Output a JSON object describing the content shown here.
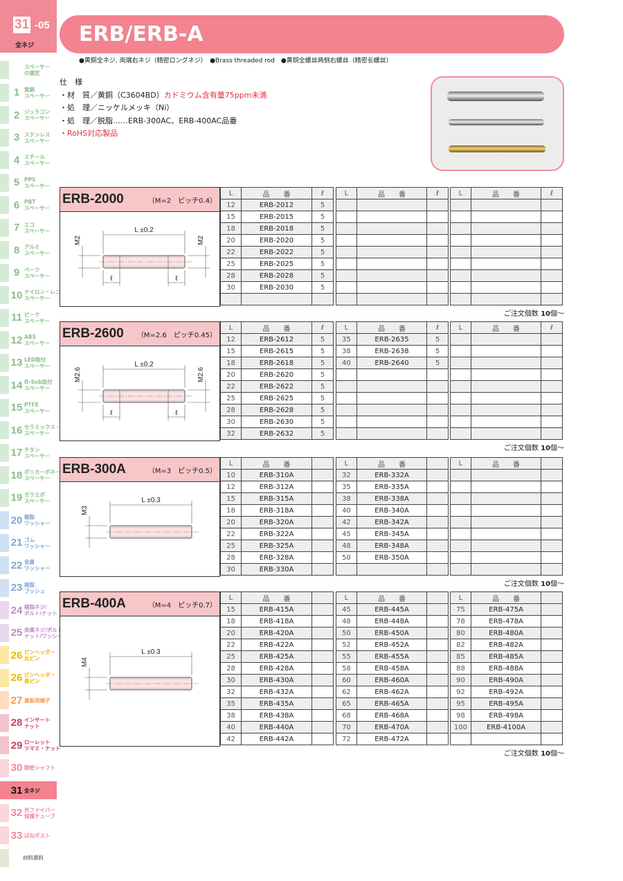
{
  "header": {
    "page_num": "31",
    "page_sub": "-05",
    "category": "全ネジ",
    "title": "ERB/ERB-A",
    "subtitle": "●黄銅全ネジ, 両端右ネジ（精密ロングネジ）　●Brass threaded rod　●黄铜全螺丝两侧右螺丝（精密长螺丝）"
  },
  "spec": {
    "heading": "仕　様",
    "lines": [
      {
        "a": "・材　質／黄銅（C3604BD）",
        "b": "カドミウム含有量75ppm未満"
      },
      {
        "a": "・処　理／ニッケルメッキ（Ni）",
        "b": ""
      },
      {
        "a": "・処　理／脱脂……ERB-300AC、ERB-400AC品番",
        "b": ""
      }
    ],
    "rohs": "・RoHS対応製品"
  },
  "colors": {
    "accent": "#f2838f",
    "header_band": "#f7c6c9",
    "note_red": "#e03040"
  },
  "sidebar": [
    {
      "n": "",
      "l": "スペーサー|の選定",
      "g": "green"
    },
    {
      "n": "1",
      "l": "黄銅|スペーサー",
      "g": "green"
    },
    {
      "n": "2",
      "l": "ジュラコン|スペーサー",
      "g": "green"
    },
    {
      "n": "3",
      "l": "ステンレス|スペーサー",
      "g": "green"
    },
    {
      "n": "4",
      "l": "スチール|スペーサー",
      "g": "green"
    },
    {
      "n": "5",
      "l": "PPS|スペーサー",
      "g": "green"
    },
    {
      "n": "6",
      "l": "PBT|スペーサー",
      "g": "green"
    },
    {
      "n": "7",
      "l": "エコ|スペーサー",
      "g": "green"
    },
    {
      "n": "8",
      "l": "アルミ|スペーサー",
      "g": "green"
    },
    {
      "n": "9",
      "l": "ベーク|スペーサー",
      "g": "green"
    },
    {
      "n": "10",
      "l": "ナイロン・レニー|スペーサー",
      "g": "green"
    },
    {
      "n": "11",
      "l": "ピーク|スペーサー",
      "g": "green"
    },
    {
      "n": "12",
      "l": "ABS|スペーサー",
      "g": "green"
    },
    {
      "n": "13",
      "l": "LED取付|スペーサー",
      "g": "green"
    },
    {
      "n": "14",
      "l": "D-Sub取付|スペーサー",
      "g": "green"
    },
    {
      "n": "15",
      "l": "PTFE|スペーサー",
      "g": "green"
    },
    {
      "n": "16",
      "l": "セラミックス・ガラス|スペーサー",
      "g": "green"
    },
    {
      "n": "17",
      "l": "チタン|スペーサー",
      "g": "green"
    },
    {
      "n": "18",
      "l": "ポリカーボネート|スペーサー",
      "g": "green"
    },
    {
      "n": "19",
      "l": "ガラエポ|スペーサー",
      "g": "green"
    },
    {
      "n": "20",
      "l": "樹脂|ワッシャー",
      "g": "blue"
    },
    {
      "n": "21",
      "l": "ゴム|ワッシャー",
      "g": "blue"
    },
    {
      "n": "22",
      "l": "金属|ワッシャー",
      "g": "blue"
    },
    {
      "n": "23",
      "l": "樹脂|ブッシュ",
      "g": "blue"
    },
    {
      "n": "24",
      "l": "樹脂ネジ/|ボルト/ナット",
      "g": "purple"
    },
    {
      "n": "25",
      "l": "金属ネジ/ボルト/|ナット/ワッシャー",
      "g": "purple"
    },
    {
      "n": "26",
      "l": "ピンヘッダー|丸ピン",
      "g": "yellow"
    },
    {
      "n": "26",
      "l": "ピンヘッダー|角ピン",
      "g": "yellow"
    },
    {
      "n": "27",
      "l": "基板用端子",
      "g": "orange"
    },
    {
      "n": "28",
      "l": "インサート|ナット",
      "g": "pink"
    },
    {
      "n": "29",
      "l": "ローレット|ツマミ・ナット",
      "g": "pink"
    },
    {
      "n": "30",
      "l": "精密シャフト",
      "g": "lpink"
    },
    {
      "n": "31",
      "l": "全ネジ",
      "g": "active"
    },
    {
      "n": "32",
      "l": "光ファイバー|保護チューブ",
      "g": "lpink"
    },
    {
      "n": "33",
      "l": "ばねポスト",
      "g": "lpink"
    },
    {
      "n": "",
      "l": "材料資料",
      "g": "gray"
    }
  ],
  "table_headers": {
    "L": "L",
    "part": "品　　番",
    "ell": "ℓ"
  },
  "moq": {
    "pre": "ご注文個数 ",
    "num": "10",
    "post": "個〜"
  },
  "sections": [
    {
      "name": "ERB-2000",
      "pitch": "（M=2　ピッチ0.4）",
      "draw": "stud",
      "m": "M2",
      "tol": "L ±0.2",
      "ell": "ℓ",
      "has_ell": true,
      "rows": 9,
      "cols": [
        [
          [
            "12",
            "ERB-2012",
            "5"
          ],
          [
            "15",
            "ERB-2015",
            "5"
          ],
          [
            "18",
            "ERB-2018",
            "5"
          ],
          [
            "20",
            "ERB-2020",
            "5"
          ],
          [
            "22",
            "ERB-2022",
            "5"
          ],
          [
            "25",
            "ERB-2025",
            "5"
          ],
          [
            "28",
            "ERB-2028",
            "5"
          ],
          [
            "30",
            "ERB-2030",
            "5"
          ]
        ],
        [],
        []
      ]
    },
    {
      "name": "ERB-2600",
      "pitch": "（M=2.6　ピッチ0.45）",
      "draw": "stud",
      "m": "M2.6",
      "tol": "L ±0.2",
      "ell": "ℓ",
      "has_ell": true,
      "rows": 9,
      "cols": [
        [
          [
            "12",
            "ERB-2612",
            "5"
          ],
          [
            "15",
            "ERB-2615",
            "5"
          ],
          [
            "18",
            "ERB-2618",
            "5"
          ],
          [
            "20",
            "ERB-2620",
            "5"
          ],
          [
            "22",
            "ERB-2622",
            "5"
          ],
          [
            "25",
            "ERB-2625",
            "5"
          ],
          [
            "28",
            "ERB-2628",
            "5"
          ],
          [
            "30",
            "ERB-2630",
            "5"
          ],
          [
            "32",
            "ERB-2632",
            "5"
          ]
        ],
        [
          [
            "35",
            "ERB-2635",
            "5"
          ],
          [
            "38",
            "ERB-2638",
            "5"
          ],
          [
            "40",
            "ERB-2640",
            "5"
          ]
        ],
        []
      ]
    },
    {
      "name": "ERB-300A",
      "pitch": "（M=3　ピッチ0.5）",
      "draw": "rod",
      "m": "M3",
      "tol": "L ±0.3",
      "has_ell": false,
      "rows": 9,
      "cols": [
        [
          [
            "10",
            "ERB-310A"
          ],
          [
            "12",
            "ERB-312A"
          ],
          [
            "15",
            "ERB-315A"
          ],
          [
            "18",
            "ERB-318A"
          ],
          [
            "20",
            "ERB-320A"
          ],
          [
            "22",
            "ERB-322A"
          ],
          [
            "25",
            "ERB-325A"
          ],
          [
            "28",
            "ERB-328A"
          ],
          [
            "30",
            "ERB-330A"
          ]
        ],
        [
          [
            "32",
            "ERB-332A"
          ],
          [
            "35",
            "ERB-335A"
          ],
          [
            "38",
            "ERB-338A"
          ],
          [
            "40",
            "ERB-340A"
          ],
          [
            "42",
            "ERB-342A"
          ],
          [
            "45",
            "ERB-345A"
          ],
          [
            "48",
            "ERB-348A"
          ],
          [
            "50",
            "ERB-350A"
          ]
        ],
        []
      ]
    },
    {
      "name": "ERB-400A",
      "pitch": "（M=4　ピッチ0.7）",
      "draw": "rod",
      "m": "M4",
      "tol": "L ±0.3",
      "has_ell": false,
      "rows": 12,
      "cols": [
        [
          [
            "15",
            "ERB-415A"
          ],
          [
            "18",
            "ERB-418A"
          ],
          [
            "20",
            "ERB-420A"
          ],
          [
            "22",
            "ERB-422A"
          ],
          [
            "25",
            "ERB-425A"
          ],
          [
            "28",
            "ERB-428A"
          ],
          [
            "30",
            "ERB-430A"
          ],
          [
            "32",
            "ERB-432A"
          ],
          [
            "35",
            "ERB-435A"
          ],
          [
            "38",
            "ERB-438A"
          ],
          [
            "40",
            "ERB-440A"
          ],
          [
            "42",
            "ERB-442A"
          ]
        ],
        [
          [
            "45",
            "ERB-445A"
          ],
          [
            "48",
            "ERB-448A"
          ],
          [
            "50",
            "ERB-450A"
          ],
          [
            "52",
            "ERB-452A"
          ],
          [
            "55",
            "ERB-455A"
          ],
          [
            "58",
            "ERB-458A"
          ],
          [
            "60",
            "ERB-460A"
          ],
          [
            "62",
            "ERB-462A"
          ],
          [
            "65",
            "ERB-465A"
          ],
          [
            "68",
            "ERB-468A"
          ],
          [
            "70",
            "ERB-470A"
          ],
          [
            "72",
            "ERB-472A"
          ]
        ],
        [
          [
            "75",
            "ERB-475A"
          ],
          [
            "78",
            "ERB-478A"
          ],
          [
            "80",
            "ERB-480A"
          ],
          [
            "82",
            "ERB-482A"
          ],
          [
            "85",
            "ERB-485A"
          ],
          [
            "88",
            "ERB-488A"
          ],
          [
            "90",
            "ERB-490A"
          ],
          [
            "92",
            "ERB-492A"
          ],
          [
            "95",
            "ERB-495A"
          ],
          [
            "98",
            "ERB-498A"
          ],
          [
            "100",
            "ERB-4100A"
          ]
        ]
      ]
    }
  ]
}
